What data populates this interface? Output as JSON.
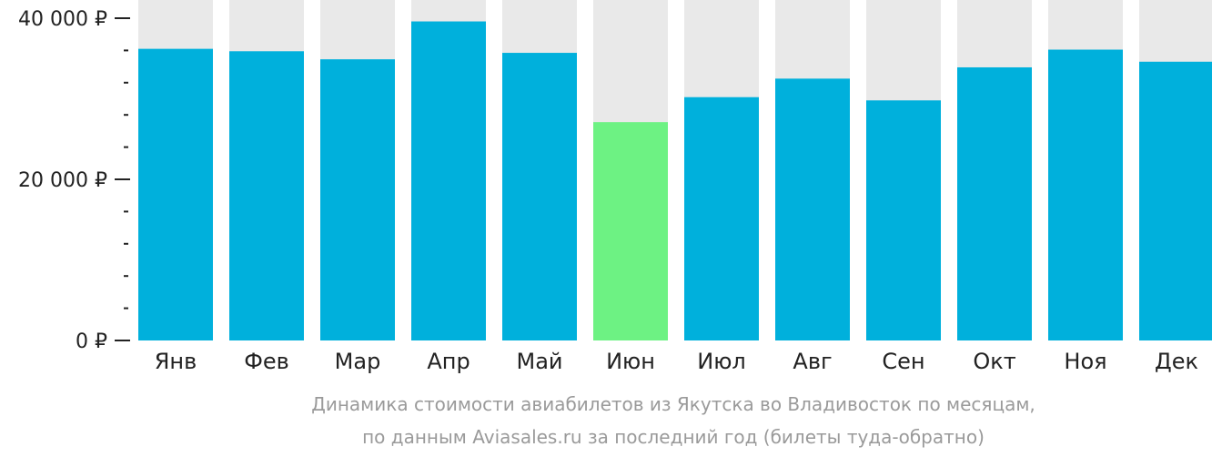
{
  "chart_data": {
    "type": "bar",
    "categories": [
      "Янв",
      "Фев",
      "Мар",
      "Апр",
      "Май",
      "Июн",
      "Июл",
      "Авг",
      "Сен",
      "Окт",
      "Ноя",
      "Дек"
    ],
    "values": [
      36200,
      35900,
      34900,
      39600,
      35700,
      27100,
      30200,
      32500,
      29800,
      33900,
      36100,
      34600
    ],
    "highlight_index": 5,
    "ylim": [
      0,
      41000
    ],
    "yticks": [
      {
        "value": 0,
        "label": "0 ₽"
      },
      {
        "value": 20000,
        "label": "20 000 ₽"
      },
      {
        "value": 40000,
        "label": "40 000 ₽"
      }
    ],
    "minor_tick_step": 4000,
    "colors": {
      "bar": "#00b0dc",
      "highlight": "#6df283",
      "background_bar": "#e9e9e9",
      "axis": "#222222"
    },
    "caption": [
      "Динамика стоимости авиабилетов из Якутска во Владивосток по месяцам,",
      "по данным Aviasales.ru за последний год (билеты туда-обратно)"
    ]
  }
}
